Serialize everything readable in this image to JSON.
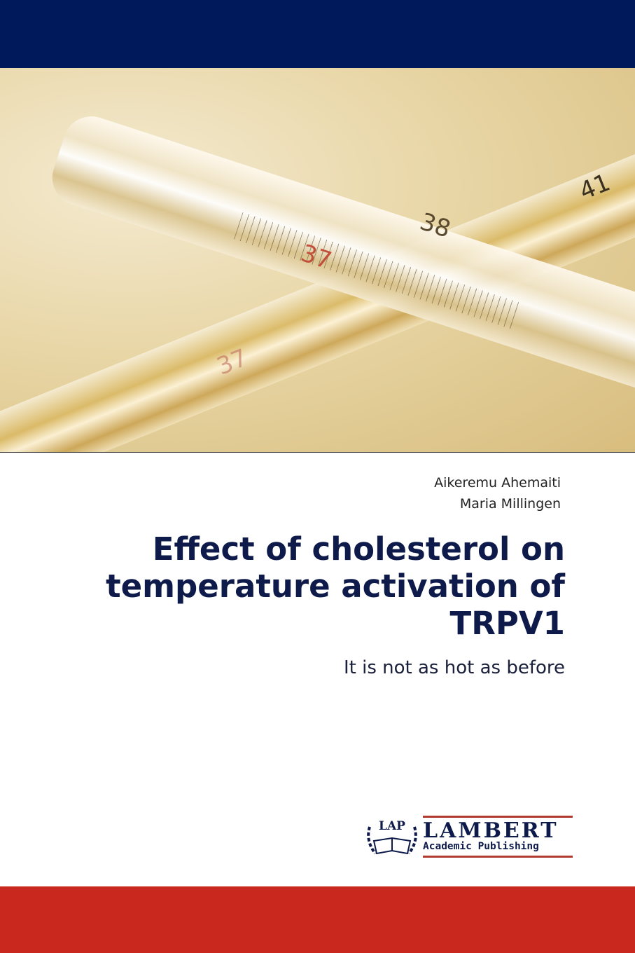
{
  "cover": {
    "authors": [
      "Aikeremu Ahemaiti",
      "Maria Millingen"
    ],
    "title": "Effect of cholesterol on temperature activation of TRPV1",
    "subtitle": "It is not as hot as before"
  },
  "photo": {
    "scale_numbers": [
      "37",
      "38",
      "41",
      "37"
    ]
  },
  "publisher": {
    "logo_mark": "LAP",
    "name": "LAMBERT",
    "tagline": "Academic Publishing"
  },
  "colors": {
    "top_band": "#00195a",
    "bottom_band": "#c8281e",
    "title": "#0d1a4a"
  }
}
